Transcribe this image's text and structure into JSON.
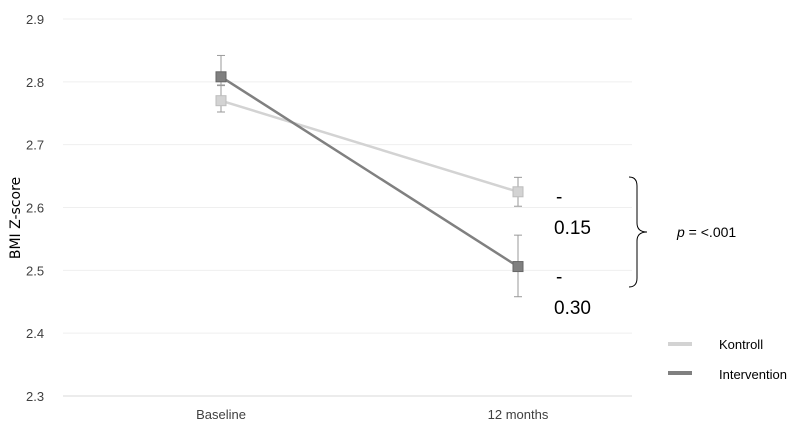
{
  "chart_data": {
    "type": "line",
    "categories": [
      "Baseline",
      "12 months"
    ],
    "ylabel": "BMI Z-score",
    "xlabel": "",
    "ylim": [
      2.3,
      2.9
    ],
    "yticks": [
      "2.3",
      "2.4",
      "2.5",
      "2.6",
      "2.7",
      "2.8",
      "2.9"
    ],
    "grid": true,
    "legend_position": "bottom-right",
    "series": [
      {
        "name": "Kontroll",
        "values": [
          2.77,
          2.625
        ],
        "error_low": [
          2.752,
          2.602
        ],
        "error_high": [
          2.794,
          2.648
        ],
        "color": "#d3d3d3"
      },
      {
        "name": "Intervention",
        "values": [
          2.808,
          2.506
        ],
        "error_low": [
          2.795,
          2.458
        ],
        "error_high": [
          2.842,
          2.556
        ],
        "color": "#808080"
      }
    ],
    "annotations": {
      "diff_kontroll": [
        "-",
        "0.15"
      ],
      "diff_intervention": [
        "-",
        "0.30"
      ],
      "p_prefix": "p",
      "p_suffix": " = <.001"
    }
  }
}
